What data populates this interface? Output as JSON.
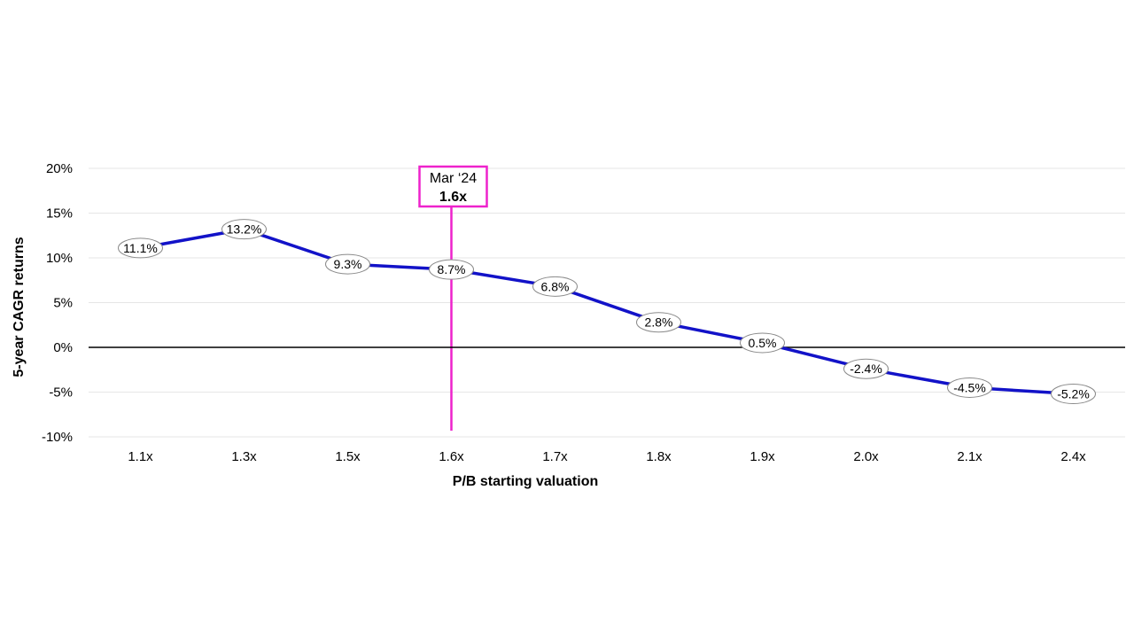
{
  "chart_data": {
    "type": "line",
    "title": "",
    "xlabel": "P/B starting valuation",
    "ylabel": "5-year CAGR returns",
    "categories": [
      "1.1x",
      "1.3x",
      "1.5x",
      "1.6x",
      "1.7x",
      "1.8x",
      "1.9x",
      "2.0x",
      "2.1x",
      "2.4x"
    ],
    "series": [
      {
        "name": "5-year CAGR returns",
        "values": [
          11.1,
          13.2,
          9.3,
          8.7,
          6.8,
          2.8,
          0.5,
          -2.4,
          -4.5,
          -5.2
        ],
        "labels": [
          "11.1%",
          "13.2%",
          "9.3%",
          "8.7%",
          "6.8%",
          "2.8%",
          "0.5%",
          "-2.4%",
          "-4.5%",
          "-5.2%"
        ]
      }
    ],
    "ylim": [
      -10,
      20
    ],
    "yticks": [
      20,
      15,
      10,
      5,
      0,
      -5,
      -10
    ],
    "ytick_labels": [
      "20%",
      "15%",
      "10%",
      "5%",
      "0%",
      "-5%",
      "-10%"
    ],
    "grid": true,
    "annotation": {
      "category": "1.6x",
      "line1": "Mar ‘24",
      "line2": "1.6x"
    }
  },
  "colors": {
    "line": "#1212c8",
    "annotation": "#ee22cc",
    "grid": "#e6e6e6",
    "zero_line": "#000000"
  }
}
